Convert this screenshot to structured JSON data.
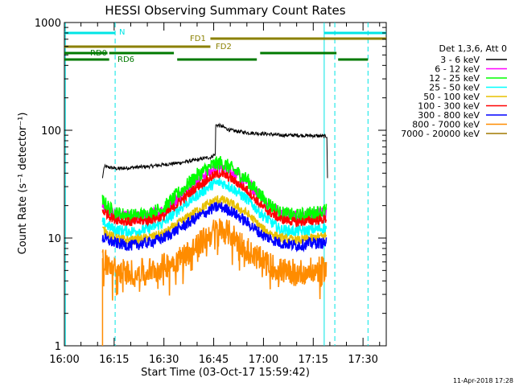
{
  "chart_data": {
    "type": "line",
    "title": "HESSI Observing Summary Count Rates",
    "xlabel": "Start Time (03-Oct-17 15:59:42)",
    "ylabel": "Count Rate (s⁻¹ detector⁻¹)",
    "yscale": "log",
    "ylim": [
      1,
      1000
    ],
    "xlim_minutes": [
      0,
      97
    ],
    "x_ticks": [
      {
        "t": 0,
        "label": "16:00"
      },
      {
        "t": 15,
        "label": "16:15"
      },
      {
        "t": 30,
        "label": "16:30"
      },
      {
        "t": 45,
        "label": "16:45"
      },
      {
        "t": 60,
        "label": "17:00"
      },
      {
        "t": 75,
        "label": "17:15"
      },
      {
        "t": 90,
        "label": "17:30"
      }
    ],
    "y_ticks": [
      {
        "v": 1,
        "label": "1"
      },
      {
        "v": 10,
        "label": "10"
      },
      {
        "v": 100,
        "label": "100"
      },
      {
        "v": 1000,
        "label": "1000"
      }
    ],
    "legend_header": "Det 1,3,6, Att 0",
    "legend_position": "right",
    "series": [
      {
        "name": "3 - 6 keV",
        "color": "#000000",
        "x": [
          11.5,
          12,
          16,
          20,
          25,
          30,
          35,
          38,
          40,
          42,
          44,
          45.5,
          45.6,
          47,
          50,
          55,
          60,
          65,
          70,
          75,
          78,
          79.2,
          79.3
        ],
        "y": [
          36,
          46,
          44,
          45,
          46,
          48,
          50,
          52,
          53,
          55,
          56,
          60,
          112,
          110,
          100,
          95,
          93,
          90,
          90,
          89,
          88,
          88,
          36
        ]
      },
      {
        "name": "6 - 12 keV",
        "color": "#ff00ff",
        "x": [
          11.5,
          15,
          20,
          25,
          30,
          35,
          40,
          45,
          47,
          50,
          55,
          60,
          65,
          70,
          75,
          79
        ],
        "y": [
          20,
          16,
          15.5,
          16,
          18,
          25,
          35,
          44,
          45,
          42,
          33,
          22,
          17,
          16,
          16.5,
          17
        ]
      },
      {
        "name": "12 - 25 keV",
        "color": "#00ff00",
        "x": [
          11.5,
          15,
          20,
          25,
          30,
          35,
          40,
          45,
          47,
          50,
          55,
          60,
          65,
          70,
          75,
          79
        ],
        "y": [
          22,
          17,
          16,
          16.5,
          19,
          27,
          38,
          48,
          50,
          45,
          35,
          23,
          17,
          16,
          17,
          18
        ]
      },
      {
        "name": "25 - 50 keV",
        "color": "#00ffff",
        "x": [
          11.5,
          15,
          20,
          25,
          30,
          35,
          40,
          45,
          47,
          50,
          55,
          60,
          65,
          70,
          75,
          79
        ],
        "y": [
          14,
          12,
          11.5,
          12,
          14,
          19,
          25,
          32,
          33,
          30,
          23,
          16,
          12,
          11.5,
          12,
          12.5
        ]
      },
      {
        "name": "50 - 100 keV",
        "color": "#e8c000",
        "x": [
          11.5,
          15,
          20,
          25,
          30,
          35,
          40,
          45,
          47,
          50,
          55,
          60,
          65,
          70,
          75,
          79
        ],
        "y": [
          12,
          10,
          9.5,
          10,
          11,
          14,
          18,
          22,
          23,
          21,
          17,
          12,
          10,
          9.5,
          10,
          10.5
        ]
      },
      {
        "name": "100 - 300 keV",
        "color": "#ff0000",
        "x": [
          11.5,
          15,
          20,
          25,
          30,
          35,
          40,
          45,
          47,
          50,
          55,
          60,
          65,
          70,
          75,
          79
        ],
        "y": [
          18,
          15,
          14,
          14.5,
          16,
          22,
          30,
          38,
          40,
          36,
          28,
          19,
          15,
          14,
          14.5,
          15
        ]
      },
      {
        "name": "300 - 800 keV",
        "color": "#0000ff",
        "x": [
          11.5,
          15,
          20,
          25,
          30,
          35,
          40,
          45,
          47,
          50,
          55,
          60,
          65,
          70,
          75,
          79
        ],
        "y": [
          10,
          9,
          8.5,
          9,
          10,
          12.5,
          15.5,
          19,
          19.5,
          18,
          14,
          10.5,
          9,
          8.5,
          9,
          9
        ]
      },
      {
        "name": "800 - 7000 keV",
        "color": "#ff8c00",
        "x": [
          11.5,
          15,
          20,
          25,
          30,
          35,
          40,
          45,
          47,
          50,
          55,
          60,
          65,
          70,
          75,
          79
        ],
        "y": [
          6.5,
          5,
          4.8,
          5,
          5.5,
          6.5,
          8.5,
          11.5,
          12,
          11,
          8,
          6,
          5,
          4.8,
          5,
          5.2
        ]
      },
      {
        "name": "7000 - 20000 keV",
        "color": "#a07800",
        "x": [],
        "y": []
      }
    ],
    "annotations": [
      {
        "label": "N",
        "color": "#00e5e5",
        "start": 0,
        "end": 15.3
      },
      {
        "label": "",
        "color": "#00e5e5",
        "start": 78.3,
        "end": 97
      },
      {
        "label": "FD1",
        "color": "#8b8000",
        "start": 44,
        "end": 97
      },
      {
        "label": "FD2",
        "color": "#8b8000",
        "start": 0,
        "end": 44
      },
      {
        "label": "RD0",
        "color": "#007a00",
        "start": 0,
        "end": 13
      },
      {
        "label": "",
        "color": "#007a00",
        "start": 13.5,
        "end": 33
      },
      {
        "label": "RD6",
        "color": "#007a00",
        "start": 0,
        "end": 13.5
      },
      {
        "label": "",
        "color": "#007a00",
        "start": 34,
        "end": 58
      },
      {
        "label": "",
        "color": "#007a00",
        "start": 59,
        "end": 82
      },
      {
        "label": "",
        "color": "#007a00",
        "start": 82.5,
        "end": 91.5
      }
    ],
    "markers": [
      {
        "t": 0.3,
        "color": "#00e5e5",
        "style": "solid"
      },
      {
        "t": 15.3,
        "color": "#00e5e5",
        "style": "dashed"
      },
      {
        "t": 78.3,
        "color": "#00e5e5",
        "style": "solid"
      },
      {
        "t": 81.5,
        "color": "#00e5e5",
        "style": "dashed"
      },
      {
        "t": 91.5,
        "color": "#00e5e5",
        "style": "dashed"
      }
    ],
    "grid": false
  },
  "footer": {
    "timestamp": "11-Apr-2018 17:28"
  }
}
